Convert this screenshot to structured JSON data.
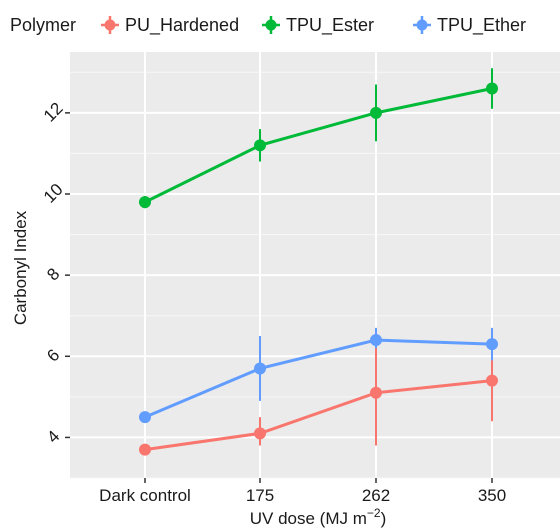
{
  "chart_data": {
    "type": "line",
    "title": "",
    "xlabel": "UV dose (MJ m",
    "xlabel_superscript": "−2",
    "xlabel_suffix": ")",
    "ylabel": "Carbonyl Index",
    "categories": [
      "Dark control",
      "175",
      "262",
      "350"
    ],
    "ylim": [
      3.0,
      13.5
    ],
    "yticks": [
      4,
      6,
      8,
      10,
      12
    ],
    "grid": true,
    "background": "#ebebeb",
    "legend": {
      "title": "Polymer",
      "placement": "top"
    },
    "series": [
      {
        "name": "PU_Hardened",
        "color": "#f8766d",
        "values": [
          3.7,
          4.1,
          5.1,
          5.4
        ],
        "error_low": [
          3.6,
          3.8,
          3.8,
          4.4
        ],
        "error_high": [
          3.8,
          4.5,
          6.4,
          6.4
        ]
      },
      {
        "name": "TPU_Ester",
        "color": "#00ba38",
        "values": [
          9.8,
          11.2,
          12.0,
          12.6
        ],
        "error_low": [
          9.65,
          10.8,
          11.3,
          12.1
        ],
        "error_high": [
          9.95,
          11.6,
          12.7,
          13.1
        ]
      },
      {
        "name": "TPU_Ether",
        "color": "#619cff",
        "values": [
          4.5,
          5.7,
          6.4,
          6.3
        ],
        "error_low": [
          4.4,
          4.9,
          6.2,
          5.9
        ],
        "error_high": [
          4.6,
          6.5,
          6.7,
          6.7
        ]
      }
    ]
  }
}
